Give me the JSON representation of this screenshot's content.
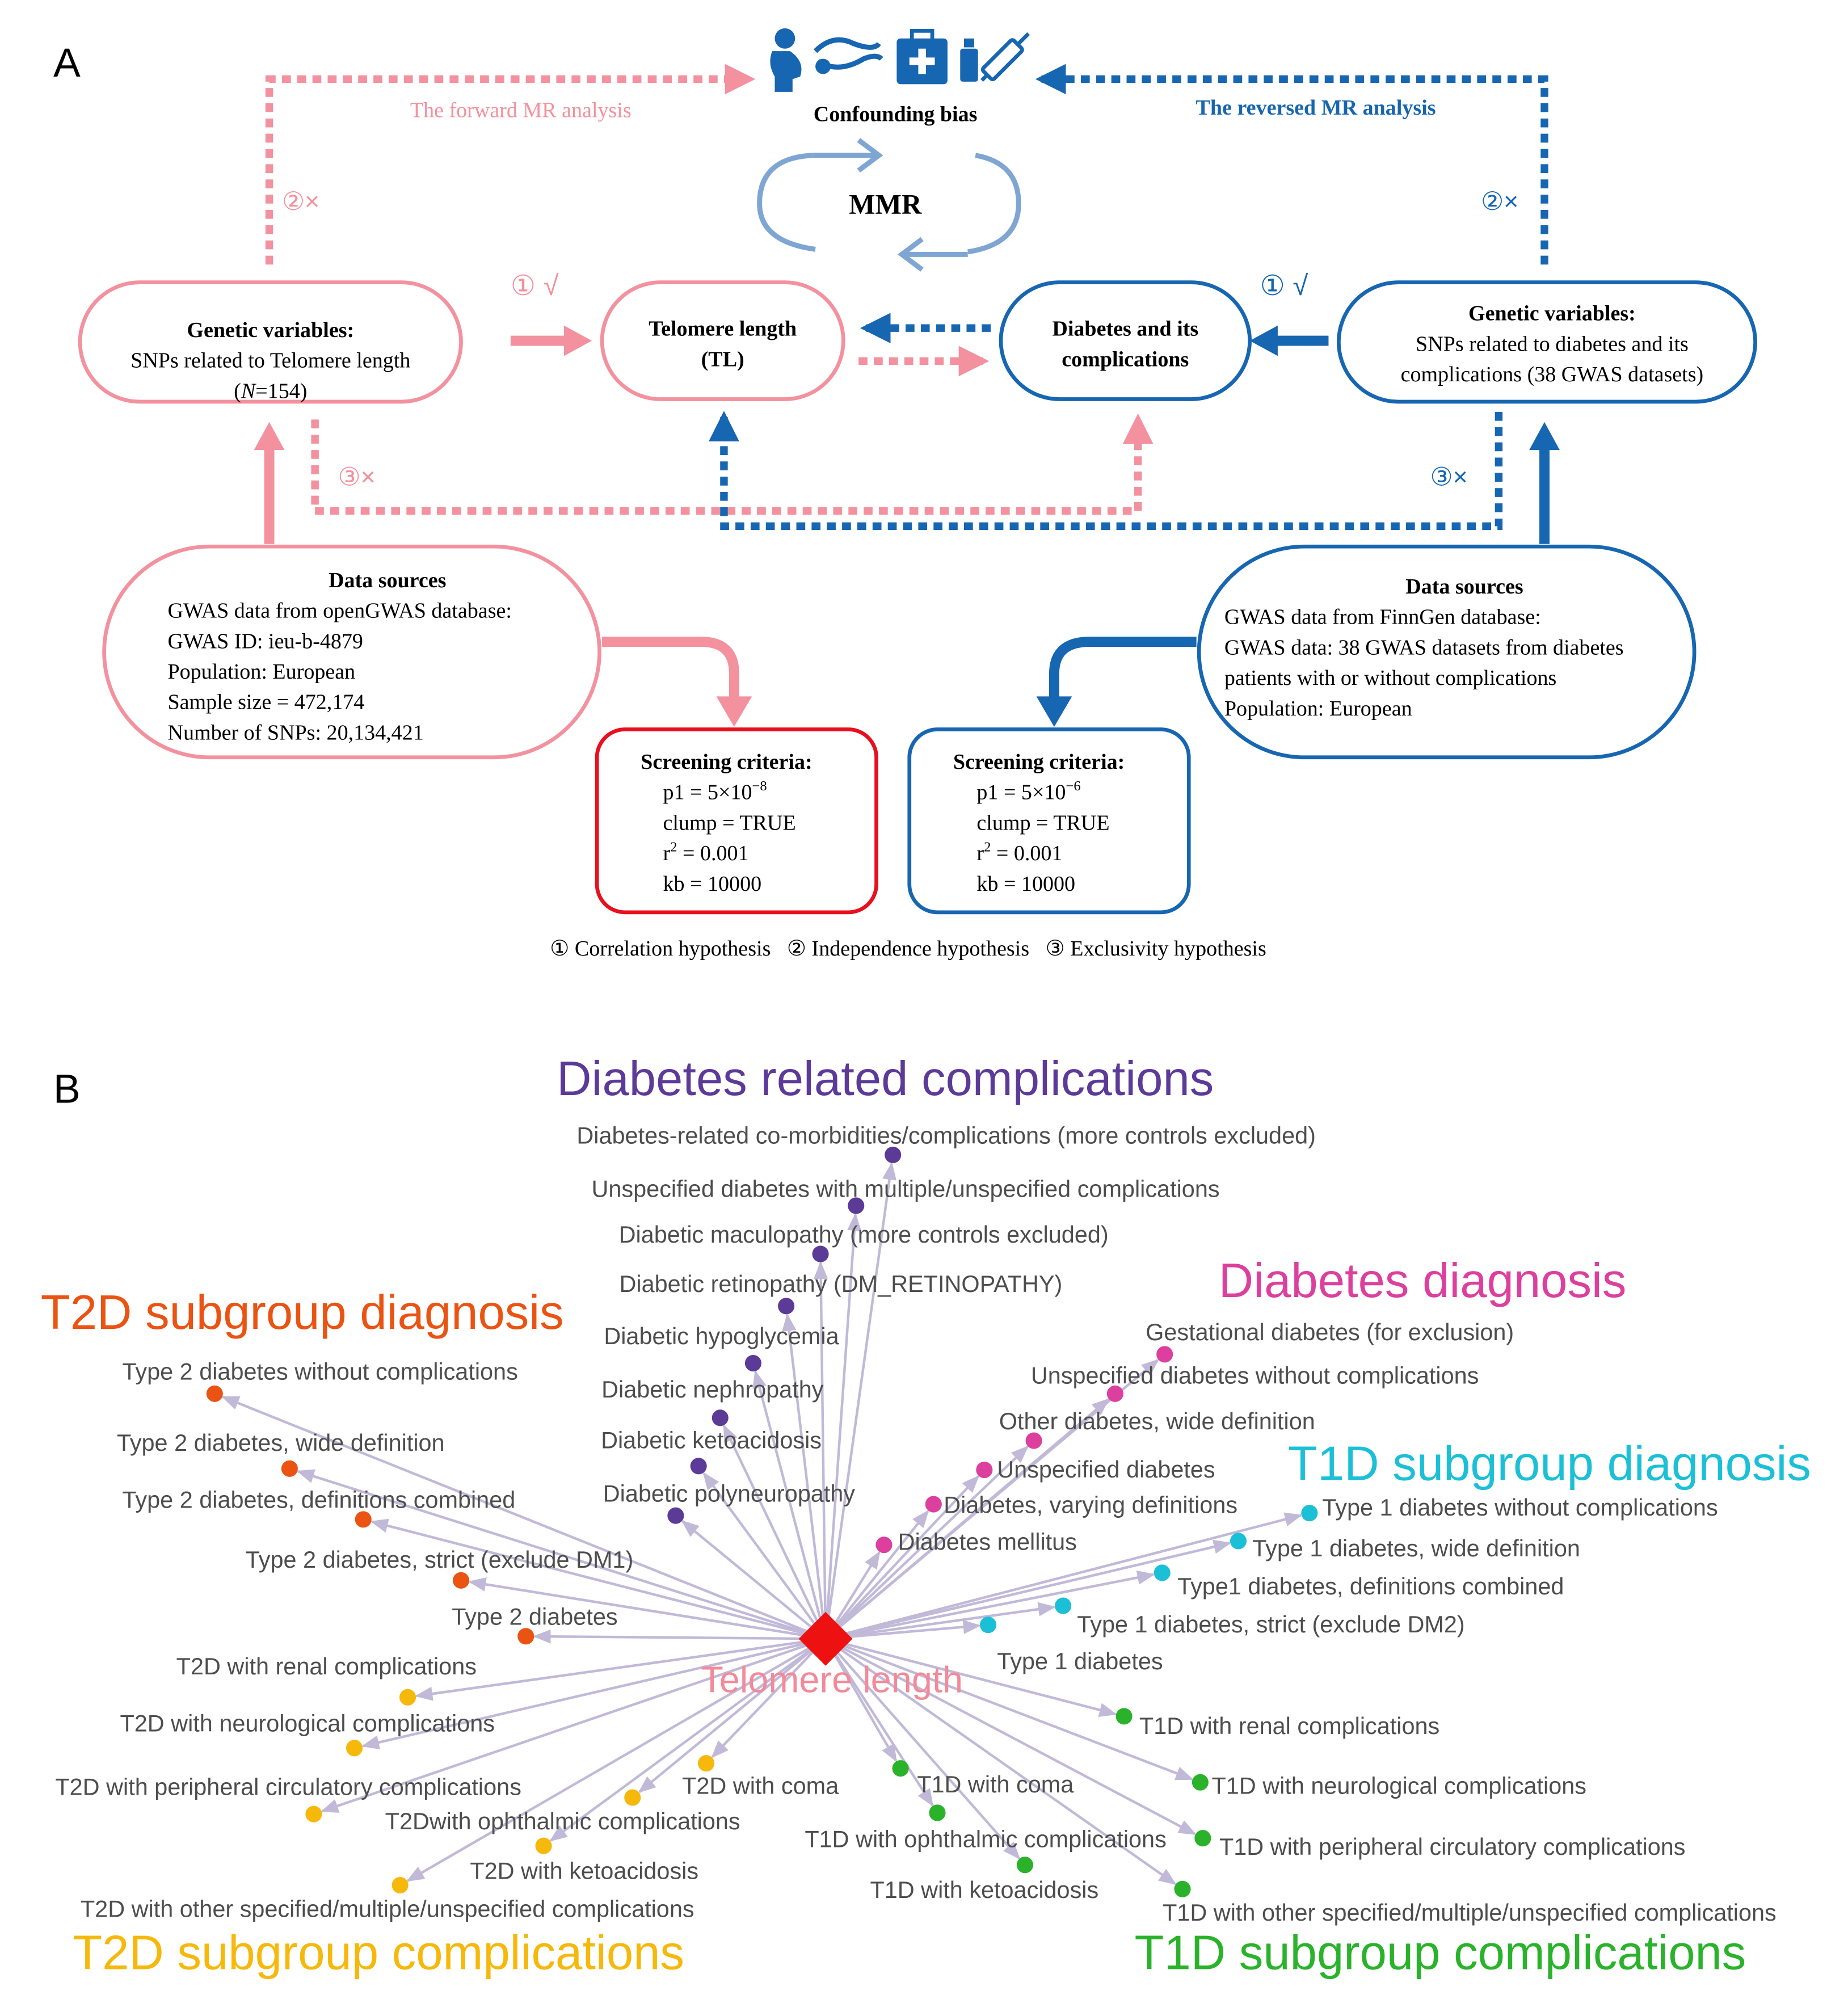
{
  "colors": {
    "pink": "#f3919e",
    "blue": "#1766b1",
    "mmr_blue": "#7fa6d3",
    "red_box": "#e8101e",
    "edge": "#c1b9d8",
    "center": "#ee1111",
    "center_label": "#f28a99",
    "purple": "#5c3a98",
    "magenta": "#dc3f9e",
    "orange": "#ea5312",
    "cyan": "#1bc0d7",
    "gold": "#f5b80b",
    "green": "#2bb22b"
  },
  "panel_a": {
    "label": "A",
    "confounding": "Confounding bias",
    "icons": [
      "pregnant-person-icon",
      "pancreas-icon",
      "medical-kit-icon",
      "vaccine-syringe-icon"
    ],
    "mmr": "MMR",
    "forward": "The forward MR analysis",
    "reversed": "The reversed MR analysis",
    "mark1_left": "① √",
    "mark1_right": "① √",
    "mark2_left": "②×",
    "mark2_right": "②×",
    "mark3_left": "③×",
    "mark3_right": "③×",
    "gv_left": {
      "title": "Genetic variables:",
      "line1": "SNPs related to Telomere length",
      "n_open": "(",
      "n_italic": "N",
      "n_rest": "=154)"
    },
    "tl": {
      "line1": "Telomere length",
      "line2": "(TL)"
    },
    "diab": {
      "line1": "Diabetes and its",
      "line2": "complications"
    },
    "gv_right": {
      "title": "Genetic variables:",
      "line1": "SNPs related to diabetes and its",
      "line2": "complications (38 GWAS datasets)"
    },
    "ds_left": {
      "title": "Data sources",
      "lines": [
        "GWAS data from openGWAS database:",
        "GWAS ID: ieu-b-4879",
        "Population: European",
        "Sample size = 472,174",
        "Number of SNPs: 20,134,421"
      ]
    },
    "ds_right": {
      "title": "Data sources",
      "lines": [
        "GWAS data from FinnGen database:",
        "GWAS data: 38 GWAS datasets from diabetes",
        "patients with or without complications",
        "Population: European"
      ]
    },
    "sc_left": {
      "title": "Screening criteria:",
      "p1_base": "p1 = 5×10",
      "p1_exp": "−8",
      "clump": "clump = TRUE",
      "r2_base": "r",
      "r2_exp": "2",
      "r2_rest": " = 0.001",
      "kb": "kb = 10000"
    },
    "sc_right": {
      "title": "Screening criteria:",
      "p1_base": "p1 = 5×10",
      "p1_exp": "−6",
      "clump": "clump = TRUE",
      "r2_base": "r",
      "r2_exp": "2",
      "r2_rest": " = 0.001",
      "kb": "kb = 10000"
    },
    "legend": "① Correlation hypothesis   ② Independence hypothesis   ③ Exclusivity hypothesis"
  },
  "panel_b": {
    "label": "B",
    "center_label": "Telomere length",
    "groups": {
      "complications": "Diabetes related complications",
      "diagnosis": "Diabetes diagnosis",
      "t2d_diag": "T2D subgroup diagnosis",
      "t1d_diag": "T1D subgroup diagnosis",
      "t2d_comp": "T2D subgroup complications",
      "t1d_comp": "T1D subgroup complications"
    },
    "nodes": [
      {
        "label": "Diabetes-related co-morbidities/complications (more controls excluded)",
        "group": "purple"
      },
      {
        "label": "Unspecified diabetes with multiple/unspecified complications",
        "group": "purple"
      },
      {
        "label": "Diabetic maculopathy (more controls excluded)",
        "group": "purple"
      },
      {
        "label": "Diabetic retinopathy (DM_RETINOPATHY)",
        "group": "purple"
      },
      {
        "label": "Diabetic hypoglycemia",
        "group": "purple"
      },
      {
        "label": "Diabetic nephropathy",
        "group": "purple"
      },
      {
        "label": "Diabetic ketoacidosis",
        "group": "purple"
      },
      {
        "label": "Diabetic polyneuropathy",
        "group": "purple"
      },
      {
        "label": "Gestational diabetes (for exclusion)",
        "group": "magenta"
      },
      {
        "label": "Unspecified diabetes without complications",
        "group": "magenta"
      },
      {
        "label": "Other diabetes, wide definition",
        "group": "magenta"
      },
      {
        "label": "Unspecified diabetes",
        "group": "magenta"
      },
      {
        "label": "Diabetes, varying definitions",
        "group": "magenta"
      },
      {
        "label": "Diabetes mellitus",
        "group": "magenta"
      },
      {
        "label": "Type 2 diabetes without complications",
        "group": "orange"
      },
      {
        "label": "Type 2 diabetes, wide definition",
        "group": "orange"
      },
      {
        "label": "Type 2 diabetes, definitions combined",
        "group": "orange"
      },
      {
        "label": "Type 2 diabetes, strict (exclude DM1)",
        "group": "orange"
      },
      {
        "label": "Type 2 diabetes",
        "group": "orange"
      },
      {
        "label": "Type 1 diabetes without complications",
        "group": "cyan"
      },
      {
        "label": "Type 1 diabetes, wide definition",
        "group": "cyan"
      },
      {
        "label": "Type1 diabetes, definitions combined",
        "group": "cyan"
      },
      {
        "label": "Type 1 diabetes, strict (exclude DM2)",
        "group": "cyan"
      },
      {
        "label": "Type 1 diabetes",
        "group": "cyan"
      },
      {
        "label": "T2D with renal complications",
        "group": "gold"
      },
      {
        "label": "T2D with neurological complications",
        "group": "gold"
      },
      {
        "label": "T2D with peripheral circulatory complications",
        "group": "gold"
      },
      {
        "label": "T2Dwith ophthalmic complications",
        "group": "gold"
      },
      {
        "label": "T2D with coma",
        "group": "gold"
      },
      {
        "label": "T2D with ketoacidosis",
        "group": "gold"
      },
      {
        "label": "T2D with other specified/multiple/unspecified complications",
        "group": "gold"
      },
      {
        "label": "T1D with renal complications",
        "group": "green"
      },
      {
        "label": "T1D with neurological complications",
        "group": "green"
      },
      {
        "label": "T1D with peripheral circulatory complications",
        "group": "green"
      },
      {
        "label": "T1D with coma",
        "group": "green"
      },
      {
        "label": "T1D with ophthalmic complications",
        "group": "green"
      },
      {
        "label": "T1D with ketoacidosis",
        "group": "green"
      },
      {
        "label": "T1D with other specified/multiple/unspecified complications",
        "group": "green"
      }
    ]
  }
}
